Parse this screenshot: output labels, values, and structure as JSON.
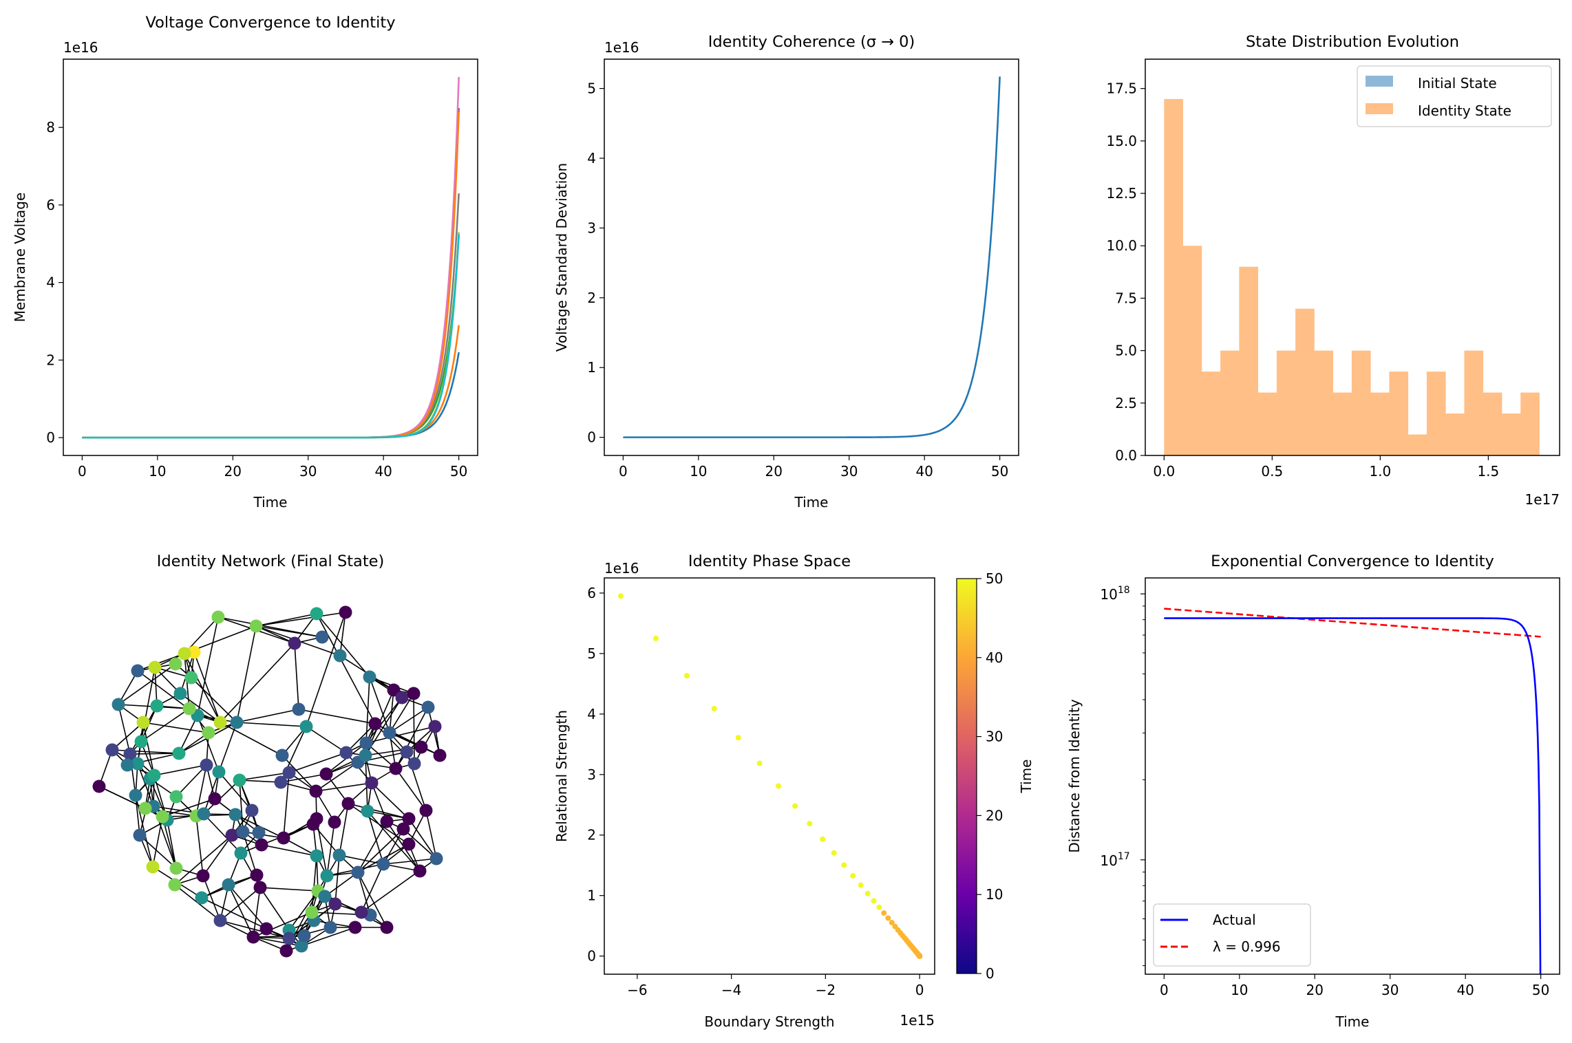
{
  "colors": {
    "tab10": [
      "#1f77b4",
      "#ff7f0e",
      "#2ca02c",
      "#d62728",
      "#9467bd",
      "#8c564b",
      "#e377c2",
      "#7f7f7f",
      "#bcbd22",
      "#17becf"
    ],
    "initial_hist": "#8fb8d8",
    "identity_hist": "#ffbf86",
    "actual_line": "#0000ff",
    "fit_line": "#ff0000"
  },
  "chart_data": [
    {
      "id": "voltage",
      "type": "line",
      "title": "Voltage Convergence to Identity",
      "xlabel": "Time",
      "ylabel": "Membrane Voltage",
      "offset_text": "1e16",
      "xlim": [
        -2.5,
        52.5
      ],
      "ylim": [
        -0.46,
        9.76
      ],
      "xticks": [
        0,
        10,
        20,
        30,
        40,
        50
      ],
      "yticks": [
        0,
        2,
        4,
        6,
        8
      ],
      "series": [
        {
          "final": 2.2,
          "color": "#1f77b4"
        },
        {
          "final": 2.9,
          "color": "#ff7f0e"
        },
        {
          "final": 5.2,
          "color": "#2ca02c"
        },
        {
          "final": 6.3,
          "color": "#7f7f7f"
        },
        {
          "final": 8.5,
          "color": "#8c564b"
        },
        {
          "final": 9.3,
          "color": "#e377c2"
        },
        {
          "final": 8.4,
          "color": "#ff7f0e"
        },
        {
          "final": 5.3,
          "color": "#bcbd22"
        },
        {
          "final": 5.25,
          "color": "#17becf"
        }
      ]
    },
    {
      "id": "coherence",
      "type": "line",
      "title": "Identity Coherence (σ → 0)",
      "xlabel": "Time",
      "ylabel": "Voltage Standard Deviation",
      "offset_text": "1e16",
      "xlim": [
        -2.5,
        52.5
      ],
      "ylim": [
        -0.26,
        5.42
      ],
      "xticks": [
        0,
        10,
        20,
        30,
        40,
        50
      ],
      "yticks": [
        0,
        1,
        2,
        3,
        4,
        5
      ],
      "final": 5.17,
      "color": "#1f77b4"
    },
    {
      "id": "distribution",
      "type": "bar",
      "title": "State Distribution Evolution",
      "offset_text": "1e17",
      "xlim": [
        -0.087,
        1.83
      ],
      "ylim": [
        0,
        18.9
      ],
      "xticks": [
        0.0,
        0.5,
        1.0,
        1.5
      ],
      "yticks": [
        0.0,
        2.5,
        5.0,
        7.5,
        10.0,
        12.5,
        15.0,
        17.5
      ],
      "bin_width": 0.0868,
      "bin_start": 0.0,
      "values": [
        17,
        10,
        4,
        5,
        9,
        3,
        5,
        7,
        5,
        3,
        5,
        3,
        4,
        1,
        4,
        2,
        5,
        3,
        2,
        3
      ],
      "legend": [
        "Initial State",
        "Identity State"
      ],
      "legend_position": "top-right"
    },
    {
      "id": "network",
      "type": "network",
      "title": "Identity Network (Final State)"
    },
    {
      "id": "phase",
      "type": "scatter",
      "title": "Identity Phase Space",
      "xlabel": "Boundary Strength",
      "ylabel": "Relational Strength",
      "x_offset_text": "1e15",
      "y_offset_text": "1e16",
      "xlim": [
        -6.7,
        0.32
      ],
      "ylim": [
        -0.3,
        6.25
      ],
      "xticks": [
        -6,
        -4,
        -2,
        0
      ],
      "yticks": [
        0,
        1,
        2,
        3,
        4,
        5,
        6
      ],
      "colorbar": {
        "label": "Time",
        "ticks": [
          0,
          10,
          20,
          30,
          40,
          50
        ],
        "range": [
          0,
          50
        ]
      },
      "x_start": -6.35,
      "y_start": 5.95
    },
    {
      "id": "exponential",
      "type": "line",
      "title": "Exponential Convergence to Identity",
      "xlabel": "Time",
      "ylabel": "Distance from Identity",
      "yscale": "log",
      "xlim": [
        -2.5,
        52.5
      ],
      "ylim_log10": [
        16.57,
        18.06
      ],
      "xticks": [
        0,
        10,
        20,
        30,
        40,
        50
      ],
      "yticks": [
        {
          "base": "10",
          "exp": "18",
          "value": 18
        },
        {
          "base": "10",
          "exp": "17",
          "value": 17
        }
      ],
      "actual_level": 8.1e+17,
      "fit_start": 8.8e+17,
      "fit_end": 6.9e+17,
      "legend": [
        "Actual",
        "λ = 0.996"
      ],
      "legend_position": "bottom-left"
    }
  ]
}
